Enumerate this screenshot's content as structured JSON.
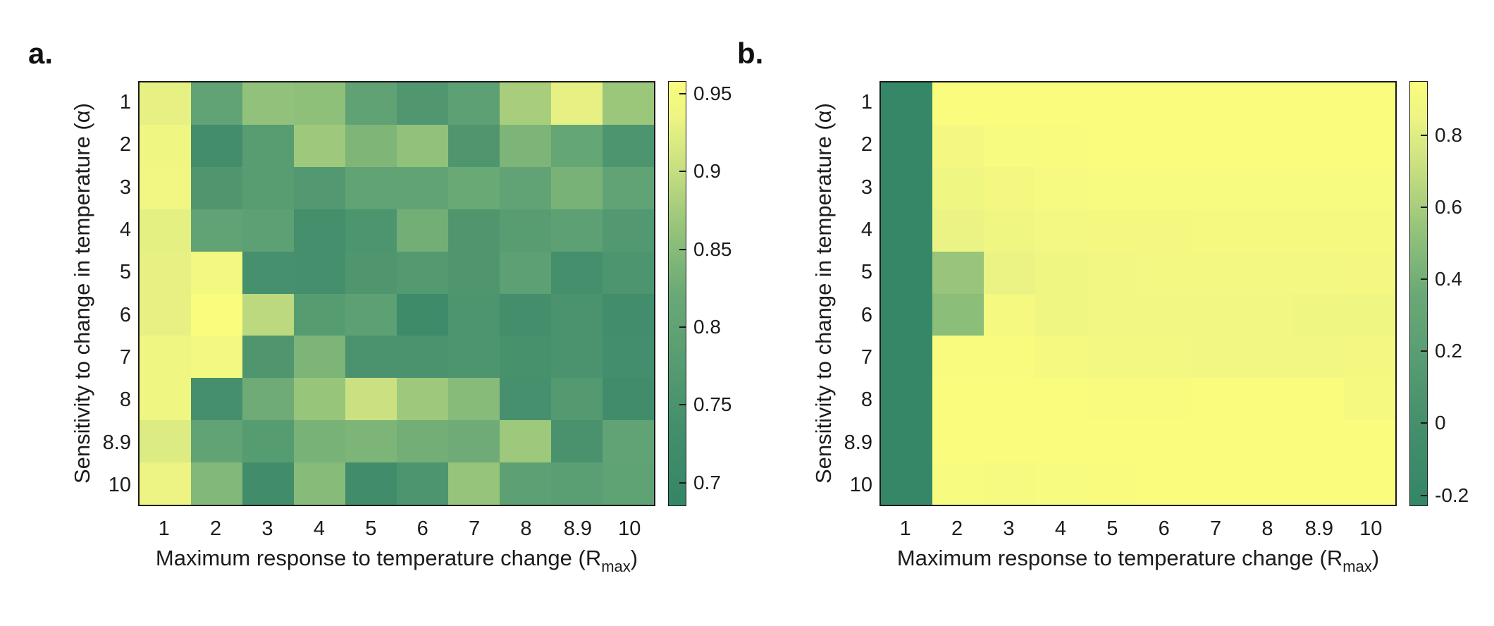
{
  "figure": {
    "background": "#ffffff",
    "text_color": "#1c1c1c"
  },
  "colormap": {
    "name": "dark-green-to-yellow",
    "stops": [
      [
        0.0,
        "#348666"
      ],
      [
        0.18,
        "#448e6c"
      ],
      [
        0.35,
        "#589d72"
      ],
      [
        0.5,
        "#6aa976"
      ],
      [
        0.65,
        "#94c37a"
      ],
      [
        0.8,
        "#c9e081"
      ],
      [
        0.92,
        "#eef583"
      ],
      [
        1.0,
        "#fafc7e"
      ]
    ]
  },
  "chart_data": [
    {
      "type": "heatmap",
      "panel_label": "a.",
      "ylabel": "Sensitivity to change in temperature (α)",
      "xlabel_main": "Maximum response to temperature change (R",
      "xlabel_sub": "max",
      "xlabel_end": ")",
      "x_tick_labels": [
        "1",
        "2",
        "3",
        "4",
        "5",
        "6",
        "7",
        "8",
        "8.9",
        "10"
      ],
      "y_tick_labels": [
        "1",
        "2",
        "3",
        "4",
        "5",
        "6",
        "7",
        "8",
        "8.9",
        "10"
      ],
      "x_values": [
        1,
        2,
        3,
        4,
        5,
        6,
        7,
        8,
        8.9,
        10
      ],
      "y_values": [
        1,
        2,
        3,
        4,
        5,
        6,
        7,
        8,
        8.9,
        10
      ],
      "vmin": 0.685,
      "vmax": 0.958,
      "colorbar_tick_labels": [
        "0.95",
        "0.9",
        "0.85",
        "0.8",
        "0.75",
        "0.7"
      ],
      "colorbar_tick_values": [
        0.95,
        0.9,
        0.85,
        0.8,
        0.75,
        0.7
      ],
      "values": [
        [
          0.93,
          0.8,
          0.86,
          0.858,
          0.798,
          0.762,
          0.79,
          0.878,
          0.93,
          0.868
        ],
        [
          0.94,
          0.73,
          0.78,
          0.87,
          0.842,
          0.86,
          0.76,
          0.84,
          0.81,
          0.756
        ],
        [
          0.942,
          0.76,
          0.78,
          0.766,
          0.8,
          0.8,
          0.82,
          0.8,
          0.835,
          0.8
        ],
        [
          0.928,
          0.8,
          0.79,
          0.736,
          0.756,
          0.83,
          0.76,
          0.78,
          0.79,
          0.766
        ],
        [
          0.93,
          0.946,
          0.74,
          0.736,
          0.76,
          0.77,
          0.76,
          0.79,
          0.737,
          0.756
        ],
        [
          0.93,
          0.958,
          0.894,
          0.776,
          0.79,
          0.716,
          0.756,
          0.733,
          0.75,
          0.728
        ],
        [
          0.94,
          0.946,
          0.76,
          0.84,
          0.75,
          0.75,
          0.756,
          0.742,
          0.75,
          0.732
        ],
        [
          0.94,
          0.736,
          0.825,
          0.865,
          0.905,
          0.87,
          0.85,
          0.74,
          0.77,
          0.726
        ],
        [
          0.92,
          0.8,
          0.776,
          0.835,
          0.84,
          0.83,
          0.825,
          0.87,
          0.745,
          0.8
        ],
        [
          0.935,
          0.845,
          0.726,
          0.85,
          0.726,
          0.756,
          0.864,
          0.79,
          0.786,
          0.796
        ]
      ]
    },
    {
      "type": "heatmap",
      "panel_label": "b.",
      "ylabel": "Sensitivity to change in temperature (α)",
      "xlabel_main": "Maximum response to temperature change (R",
      "xlabel_sub": "max",
      "xlabel_end": ")",
      "x_tick_labels": [
        "1",
        "2",
        "3",
        "4",
        "5",
        "6",
        "7",
        "8",
        "8.9",
        "10"
      ],
      "y_tick_labels": [
        "1",
        "2",
        "3",
        "4",
        "5",
        "6",
        "7",
        "8",
        "8.9",
        "10"
      ],
      "x_values": [
        1,
        2,
        3,
        4,
        5,
        6,
        7,
        8,
        8.9,
        10
      ],
      "y_values": [
        1,
        2,
        3,
        4,
        5,
        6,
        7,
        8,
        8.9,
        10
      ],
      "vmin": -0.23,
      "vmax": 0.95,
      "colorbar_tick_labels": [
        "0.8",
        "0.6",
        "0.4",
        "0.2",
        "0",
        "-0.2"
      ],
      "colorbar_tick_values": [
        0.8,
        0.6,
        0.4,
        0.2,
        0,
        -0.2
      ],
      "values": [
        [
          -0.2,
          0.95,
          0.95,
          0.95,
          0.95,
          0.95,
          0.95,
          0.95,
          0.95,
          0.95
        ],
        [
          -0.2,
          0.9,
          0.93,
          0.94,
          0.95,
          0.95,
          0.95,
          0.95,
          0.95,
          0.95
        ],
        [
          -0.2,
          0.87,
          0.9,
          0.92,
          0.93,
          0.93,
          0.93,
          0.93,
          0.93,
          0.93
        ],
        [
          -0.2,
          0.84,
          0.87,
          0.89,
          0.9,
          0.9,
          0.91,
          0.91,
          0.91,
          0.91
        ],
        [
          -0.2,
          0.55,
          0.84,
          0.87,
          0.88,
          0.89,
          0.89,
          0.89,
          0.89,
          0.9
        ],
        [
          -0.2,
          0.5,
          0.91,
          0.87,
          0.88,
          0.88,
          0.88,
          0.88,
          0.87,
          0.87
        ],
        [
          -0.2,
          0.94,
          0.94,
          0.91,
          0.89,
          0.89,
          0.88,
          0.88,
          0.88,
          0.9
        ],
        [
          -0.2,
          0.95,
          0.95,
          0.95,
          0.94,
          0.94,
          0.95,
          0.95,
          0.95,
          0.91
        ],
        [
          -0.2,
          0.95,
          0.95,
          0.95,
          0.95,
          0.95,
          0.95,
          0.95,
          0.95,
          0.95
        ],
        [
          -0.2,
          0.93,
          0.92,
          0.93,
          0.94,
          0.95,
          0.95,
          0.95,
          0.95,
          0.95
        ]
      ]
    }
  ]
}
